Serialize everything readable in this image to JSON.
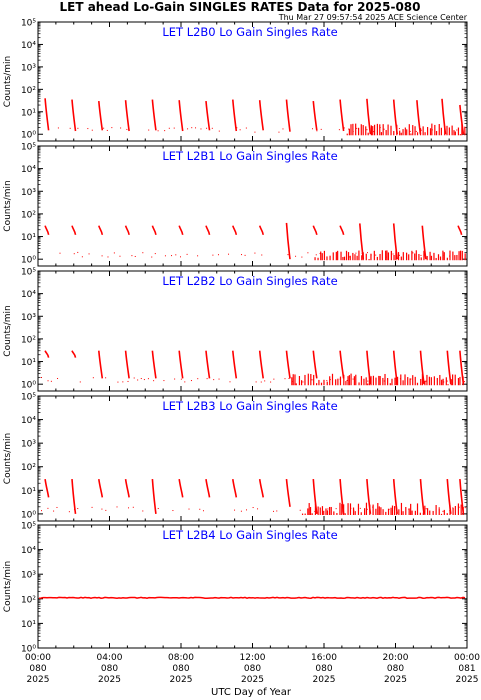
{
  "page": {
    "title": "LET ahead Lo-Gain SINGLES RATES Data for 2025-080",
    "timestamp": "Thu Mar 27 09:57:54 2025 ACE Science Center",
    "xlabel": "UTC Day of Year"
  },
  "colors": {
    "data": "#ff0000",
    "panel_title": "#0000ff",
    "axes": "#000000",
    "background": "#ffffff"
  },
  "chart_data": [
    {
      "type": "line",
      "title": "LET L2B0 Lo Gain Singles Rate",
      "ylabel": "Counts/min",
      "yscale": "log",
      "ylim": [
        0.5,
        100000
      ],
      "ytick_values": [
        1,
        10,
        100,
        1000,
        10000,
        100000
      ],
      "ytick_labels": [
        "10⁰",
        "10¹",
        "10²",
        "10³",
        "10⁴",
        "10⁵"
      ],
      "xlim_hours": [
        0,
        24
      ],
      "series": [
        {
          "style": "spikes",
          "spikes": [
            {
              "t": 0.4,
              "top": 40,
              "bottom": 1.5
            },
            {
              "t": 1.9,
              "top": 35,
              "bottom": 1.4
            },
            {
              "t": 3.4,
              "top": 30,
              "bottom": 1.5
            },
            {
              "t": 4.9,
              "top": 33,
              "bottom": 1.4
            },
            {
              "t": 6.4,
              "top": 35,
              "bottom": 1.5
            },
            {
              "t": 7.9,
              "top": 33,
              "bottom": 1.4
            },
            {
              "t": 9.4,
              "top": 30,
              "bottom": 1.5
            },
            {
              "t": 10.9,
              "top": 35,
              "bottom": 1.4
            },
            {
              "t": 12.4,
              "top": 33,
              "bottom": 1.5
            },
            {
              "t": 13.9,
              "top": 35,
              "bottom": 1.3
            },
            {
              "t": 15.4,
              "top": 30,
              "bottom": 1.5
            },
            {
              "t": 16.9,
              "top": 35,
              "bottom": 1.4
            },
            {
              "t": 18.4,
              "top": 38,
              "bottom": 1.0
            },
            {
              "t": 19.9,
              "top": 35,
              "bottom": 1.0
            },
            {
              "t": 21.2,
              "top": 33,
              "bottom": 1.0
            },
            {
              "t": 22.6,
              "top": 38,
              "bottom": 1.0
            },
            {
              "t": 23.6,
              "top": 20,
              "bottom": 1.0
            }
          ],
          "bursts": [
            [
              17.3,
              23.9,
              3
            ]
          ]
        }
      ]
    },
    {
      "type": "line",
      "title": "LET L2B1 Lo Gain Singles Rate",
      "ylabel": "Counts/min",
      "yscale": "log",
      "ylim": [
        0.5,
        100000
      ],
      "ytick_values": [
        1,
        10,
        100,
        1000,
        10000,
        100000
      ],
      "ytick_labels": [
        "10⁰",
        "10¹",
        "10²",
        "10³",
        "10⁴",
        "10⁵"
      ],
      "xlim_hours": [
        0,
        24
      ],
      "series": [
        {
          "style": "spikes",
          "spikes": [
            {
              "t": 0.4,
              "top": 30,
              "bottom": 12
            },
            {
              "t": 1.9,
              "top": 30,
              "bottom": 12
            },
            {
              "t": 3.4,
              "top": 30,
              "bottom": 12
            },
            {
              "t": 4.9,
              "top": 30,
              "bottom": 12
            },
            {
              "t": 6.4,
              "top": 30,
              "bottom": 12
            },
            {
              "t": 7.9,
              "top": 30,
              "bottom": 12
            },
            {
              "t": 9.4,
              "top": 30,
              "bottom": 12
            },
            {
              "t": 10.9,
              "top": 30,
              "bottom": 12
            },
            {
              "t": 12.4,
              "top": 30,
              "bottom": 12
            },
            {
              "t": 13.9,
              "top": 40,
              "bottom": 1.0
            },
            {
              "t": 15.4,
              "top": 30,
              "bottom": 12
            },
            {
              "t": 16.9,
              "top": 30,
              "bottom": 12
            },
            {
              "t": 18.0,
              "top": 38,
              "bottom": 1.0
            },
            {
              "t": 19.9,
              "top": 38,
              "bottom": 1.0
            },
            {
              "t": 21.5,
              "top": 30,
              "bottom": 1.0
            },
            {
              "t": 23.5,
              "top": 30,
              "bottom": 12
            }
          ],
          "bursts": [
            [
              15.5,
              23.9,
              2.5
            ]
          ]
        }
      ]
    },
    {
      "type": "line",
      "title": "LET L2B2 Lo Gain Singles Rate",
      "ylabel": "Counts/min",
      "yscale": "log",
      "ylim": [
        0.5,
        100000
      ],
      "ytick_values": [
        1,
        10,
        100,
        1000,
        10000,
        100000
      ],
      "ytick_labels": [
        "10⁰",
        "10¹",
        "10²",
        "10³",
        "10⁴",
        "10⁵"
      ],
      "xlim_hours": [
        0,
        24
      ],
      "series": [
        {
          "style": "spikes",
          "spikes": [
            {
              "t": 0.4,
              "top": 30,
              "bottom": 15
            },
            {
              "t": 1.9,
              "top": 30,
              "bottom": 15
            },
            {
              "t": 3.4,
              "top": 30,
              "bottom": 1.8
            },
            {
              "t": 4.9,
              "top": 30,
              "bottom": 1.8
            },
            {
              "t": 6.4,
              "top": 30,
              "bottom": 1.8
            },
            {
              "t": 7.9,
              "top": 30,
              "bottom": 1.8
            },
            {
              "t": 9.4,
              "top": 30,
              "bottom": 1.8
            },
            {
              "t": 10.9,
              "top": 30,
              "bottom": 1.8
            },
            {
              "t": 12.4,
              "top": 30,
              "bottom": 1.8
            },
            {
              "t": 13.9,
              "top": 30,
              "bottom": 1.8
            },
            {
              "t": 15.4,
              "top": 30,
              "bottom": 1.8
            },
            {
              "t": 16.9,
              "top": 30,
              "bottom": 1.8
            },
            {
              "t": 18.4,
              "top": 30,
              "bottom": 1.0
            },
            {
              "t": 19.9,
              "top": 30,
              "bottom": 1.0
            },
            {
              "t": 21.4,
              "top": 30,
              "bottom": 1.0
            },
            {
              "t": 22.9,
              "top": 30,
              "bottom": 1.0
            },
            {
              "t": 23.6,
              "top": 30,
              "bottom": 1.0
            }
          ],
          "bursts": [
            [
              14.2,
              23.9,
              3
            ]
          ]
        }
      ]
    },
    {
      "type": "line",
      "title": "LET L2B3 Lo Gain Singles Rate",
      "ylabel": "Counts/min",
      "yscale": "log",
      "ylim": [
        0.5,
        100000
      ],
      "ytick_values": [
        1,
        10,
        100,
        1000,
        10000,
        100000
      ],
      "ytick_labels": [
        "10⁰",
        "10¹",
        "10²",
        "10³",
        "10⁴",
        "10⁵"
      ],
      "xlim_hours": [
        0,
        24
      ],
      "series": [
        {
          "style": "spikes",
          "spikes": [
            {
              "t": 0.4,
              "top": 30,
              "bottom": 5
            },
            {
              "t": 1.9,
              "top": 30,
              "bottom": 1.0
            },
            {
              "t": 3.4,
              "top": 30,
              "bottom": 5
            },
            {
              "t": 4.9,
              "top": 30,
              "bottom": 5
            },
            {
              "t": 6.4,
              "top": 30,
              "bottom": 1.0
            },
            {
              "t": 7.9,
              "top": 30,
              "bottom": 5
            },
            {
              "t": 9.4,
              "top": 30,
              "bottom": 5
            },
            {
              "t": 10.9,
              "top": 30,
              "bottom": 5
            },
            {
              "t": 12.4,
              "top": 30,
              "bottom": 5
            },
            {
              "t": 13.9,
              "top": 30,
              "bottom": 2
            },
            {
              "t": 15.4,
              "top": 30,
              "bottom": 1.0
            },
            {
              "t": 16.9,
              "top": 30,
              "bottom": 1.0
            },
            {
              "t": 18.4,
              "top": 30,
              "bottom": 1.0
            },
            {
              "t": 19.9,
              "top": 30,
              "bottom": 1.0
            },
            {
              "t": 21.4,
              "top": 30,
              "bottom": 1.0
            },
            {
              "t": 22.9,
              "top": 30,
              "bottom": 1.0
            },
            {
              "t": 23.6,
              "top": 30,
              "bottom": 1.0
            }
          ],
          "bursts": [
            [
              14.8,
              23.9,
              3
            ]
          ]
        }
      ]
    },
    {
      "type": "line",
      "title": "LET L2B4 Lo Gain Singles Rate",
      "ylabel": "Counts/min",
      "yscale": "log",
      "ylim": [
        1,
        100000
      ],
      "ytick_values": [
        1,
        10,
        100,
        1000,
        10000,
        100000
      ],
      "ytick_labels": [
        "10⁰",
        "10¹",
        "10²",
        "10³",
        "10⁴",
        "10⁵"
      ],
      "xlim_hours": [
        0,
        24
      ],
      "series": [
        {
          "style": "flat",
          "value": 110
        }
      ]
    }
  ],
  "x_ticks": [
    {
      "hours": 0,
      "time": "00:00",
      "doy": "080",
      "year": "2025"
    },
    {
      "hours": 4,
      "time": "04:00",
      "doy": "080",
      "year": "2025"
    },
    {
      "hours": 8,
      "time": "08:00",
      "doy": "080",
      "year": "2025"
    },
    {
      "hours": 12,
      "time": "12:00",
      "doy": "080",
      "year": "2025"
    },
    {
      "hours": 16,
      "time": "16:00",
      "doy": "080",
      "year": "2025"
    },
    {
      "hours": 20,
      "time": "20:00",
      "doy": "080",
      "year": "2025"
    },
    {
      "hours": 24,
      "time": "00:00",
      "doy": "081",
      "year": "2025"
    }
  ]
}
